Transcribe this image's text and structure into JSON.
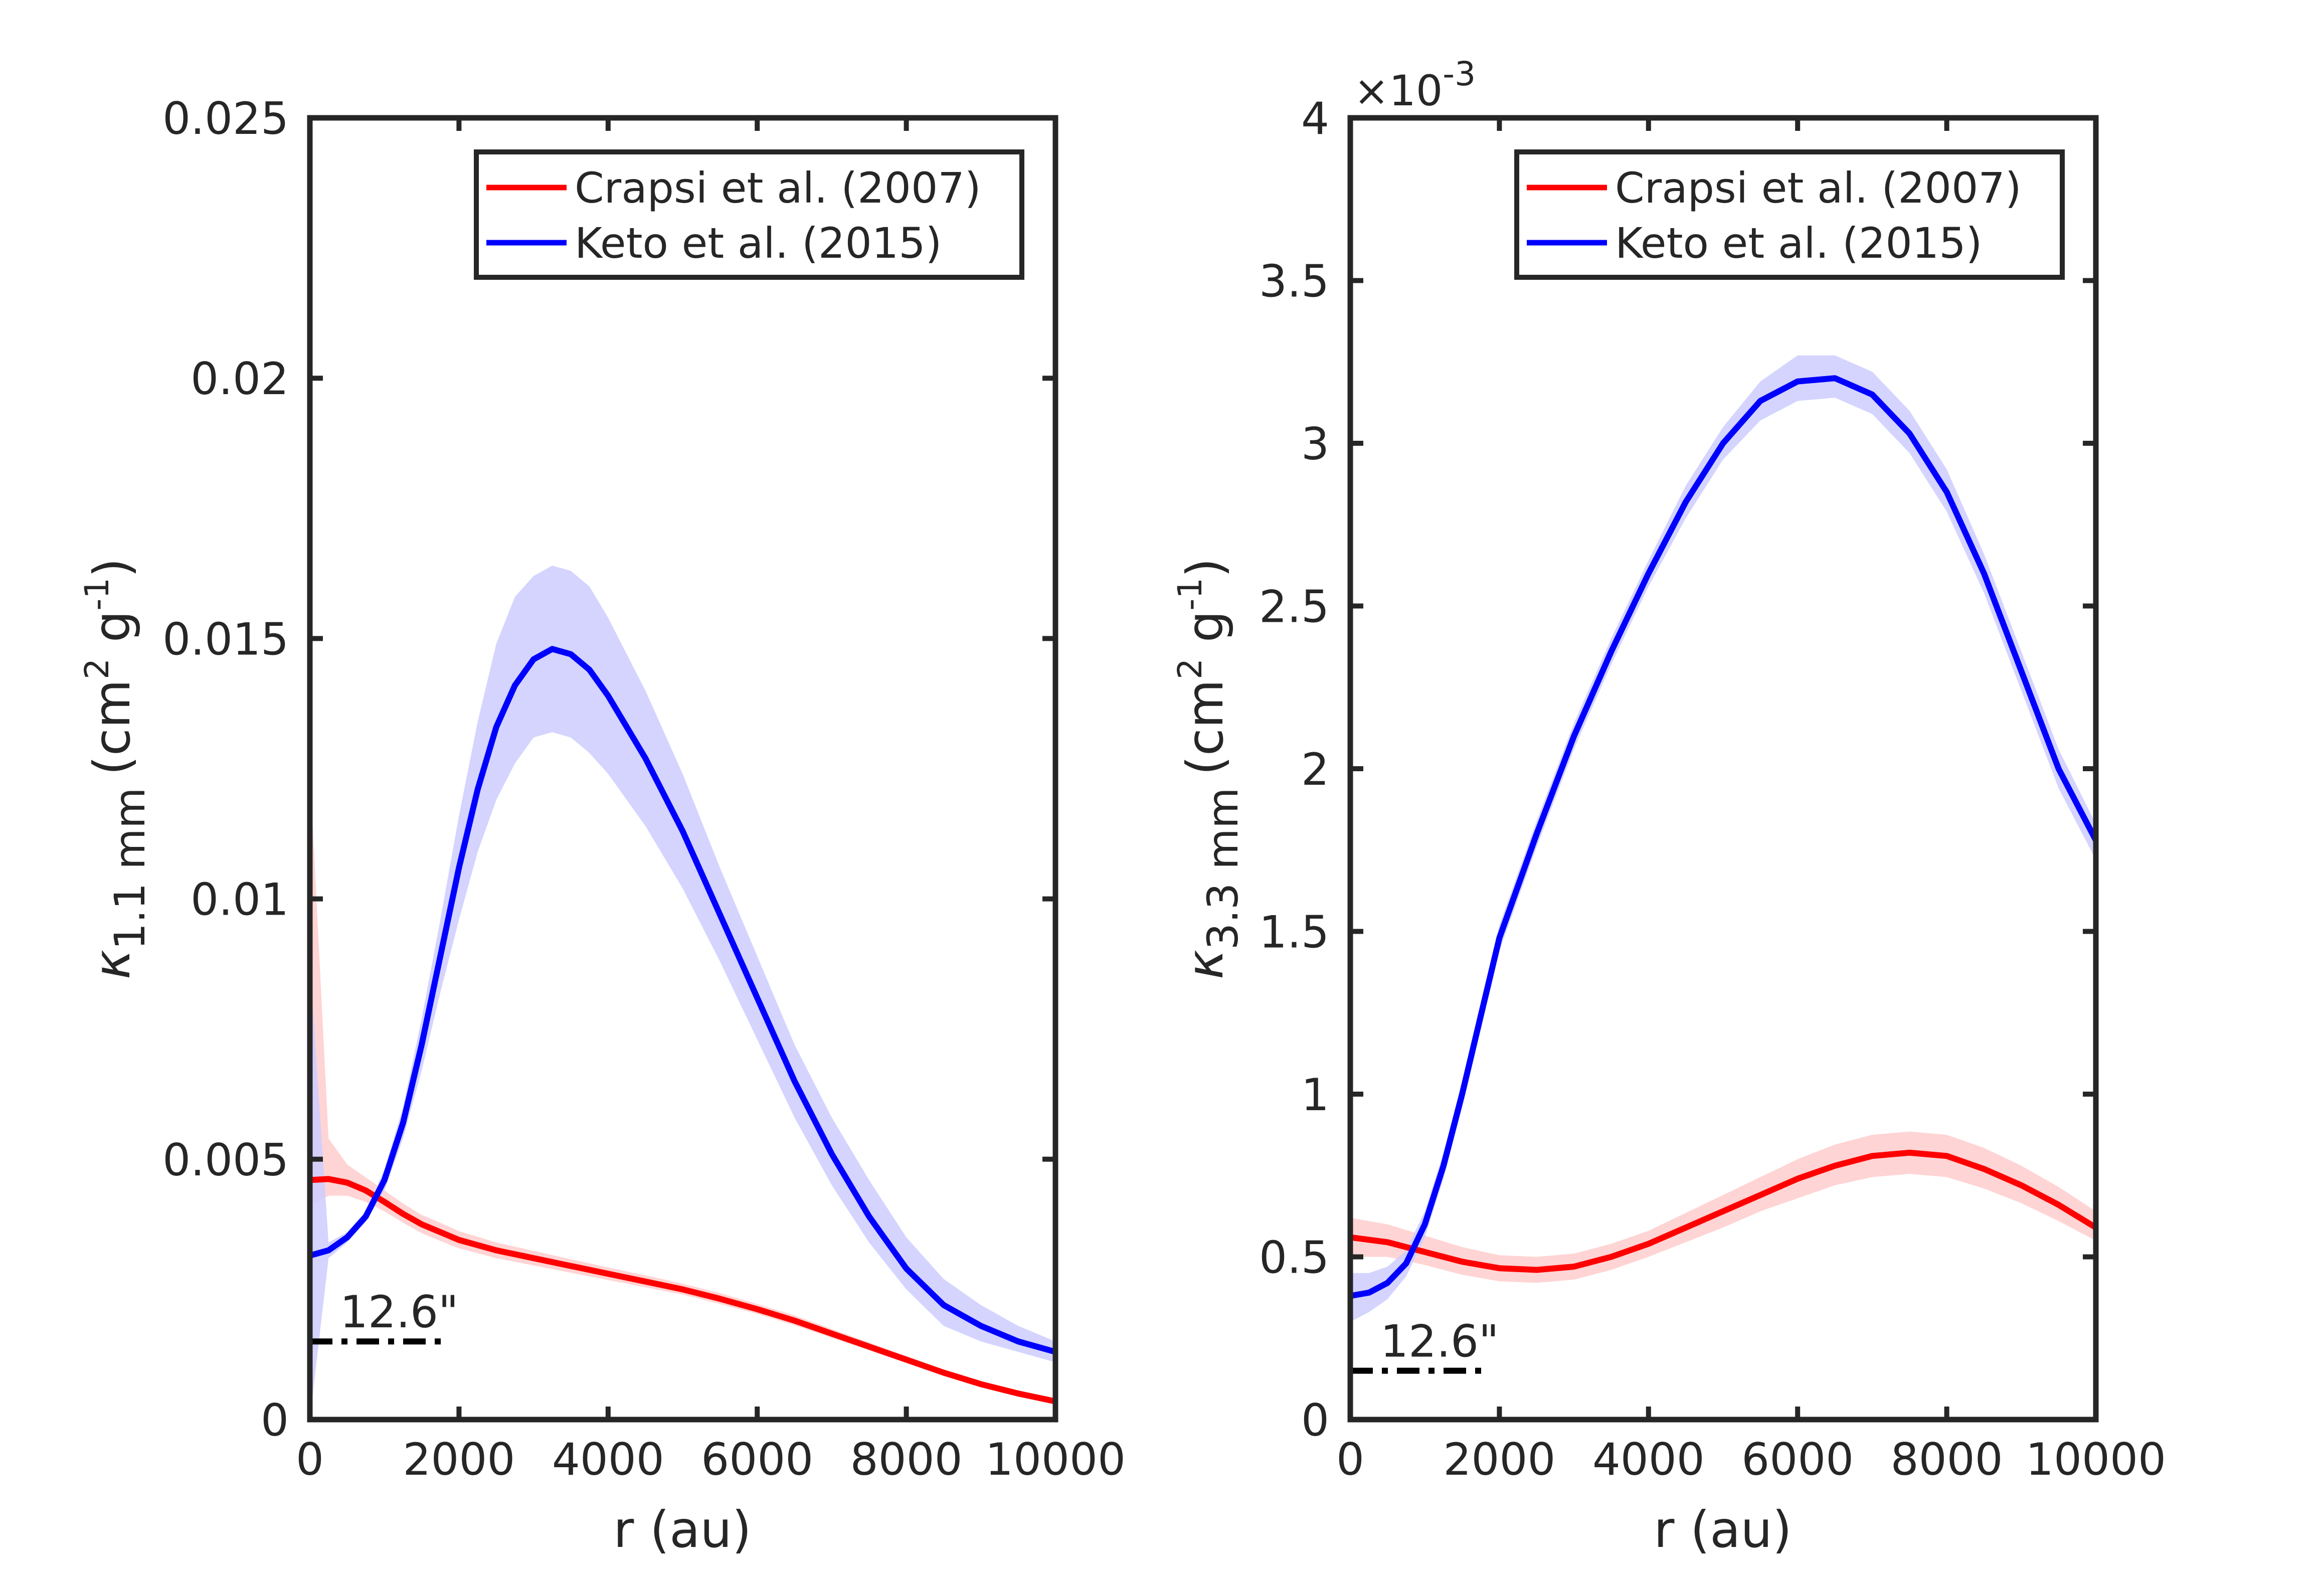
{
  "chart_data": [
    {
      "type": "line",
      "xlabel": "r (au)",
      "ylabel": {
        "symbol": "κ",
        "subscript": "1.1 mm",
        "unit_open": "(cm",
        "unit_pow1": "2",
        "unit_mid": " g",
        "unit_pow2": "-1",
        "unit_close": ")"
      },
      "xlim": [
        0,
        10000
      ],
      "ylim": [
        0,
        0.025
      ],
      "xticks": [
        0,
        2000,
        4000,
        6000,
        8000,
        10000
      ],
      "xtick_labels": [
        "0",
        "2000",
        "4000",
        "6000",
        "8000",
        "10000"
      ],
      "yticks": [
        0,
        0.005,
        0.01,
        0.015,
        0.02,
        0.025
      ],
      "ytick_labels": [
        "0",
        "0.005",
        "0.01",
        "0.015",
        "0.02",
        "0.025"
      ],
      "exponent_label": null,
      "legend": {
        "position": "top-right",
        "entries": [
          "Crapsi et al. (2007)",
          "Keto et al. (2015)"
        ]
      },
      "annotation": {
        "text": "12.6\"",
        "x_start": 0,
        "x_end": 1800,
        "y": 0.0015
      },
      "series": [
        {
          "name": "Crapsi et al. (2007)",
          "color": "#ff0000",
          "band_color": "#ffcccc",
          "x": [
            0,
            250,
            500,
            750,
            1000,
            1250,
            1500,
            1750,
            2000,
            2500,
            3000,
            3500,
            4000,
            4500,
            5000,
            5500,
            6000,
            6500,
            7000,
            7500,
            8000,
            8500,
            9000,
            9500,
            10000
          ],
          "y": [
            0.0046,
            0.00462,
            0.00455,
            0.0044,
            0.00418,
            0.00395,
            0.00375,
            0.0036,
            0.00345,
            0.00325,
            0.0031,
            0.00295,
            0.0028,
            0.00265,
            0.0025,
            0.00232,
            0.00212,
            0.0019,
            0.00165,
            0.0014,
            0.00115,
            0.0009,
            0.00068,
            0.0005,
            0.00035
          ],
          "lower": [
            0.0041,
            0.0043,
            0.0043,
            0.00418,
            0.004,
            0.00378,
            0.00358,
            0.00343,
            0.00329,
            0.0031,
            0.00296,
            0.00282,
            0.00268,
            0.00254,
            0.0024,
            0.00222,
            0.00203,
            0.00181,
            0.00157,
            0.00133,
            0.00109,
            0.00085,
            0.00064,
            0.00047,
            0.00032
          ],
          "upper": [
            0.0125,
            0.0054,
            0.0049,
            0.00465,
            0.0044,
            0.00415,
            0.00393,
            0.00378,
            0.00362,
            0.0034,
            0.00324,
            0.00308,
            0.00292,
            0.00277,
            0.00261,
            0.00243,
            0.00222,
            0.002,
            0.00174,
            0.00148,
            0.00122,
            0.00096,
            0.00073,
            0.00054,
            0.00038
          ]
        },
        {
          "name": "Keto et al. (2015)",
          "color": "#0000ff",
          "band_color": "#ccccff",
          "x": [
            0,
            250,
            500,
            750,
            1000,
            1250,
            1500,
            1750,
            2000,
            2250,
            2500,
            2750,
            3000,
            3250,
            3500,
            3750,
            4000,
            4500,
            5000,
            5500,
            6000,
            6500,
            7000,
            7500,
            8000,
            8500,
            9000,
            9500,
            10000
          ],
          "y": [
            0.00315,
            0.00325,
            0.0035,
            0.0039,
            0.0046,
            0.0057,
            0.0072,
            0.0089,
            0.0106,
            0.0121,
            0.0133,
            0.0141,
            0.0146,
            0.0148,
            0.0147,
            0.0144,
            0.0139,
            0.0127,
            0.0113,
            0.0097,
            0.0081,
            0.0065,
            0.0051,
            0.0039,
            0.0029,
            0.0022,
            0.0018,
            0.0015,
            0.0013
          ],
          "lower": [
            0.0,
            0.0031,
            0.0034,
            0.0038,
            0.0044,
            0.0054,
            0.0067,
            0.0082,
            0.0096,
            0.0109,
            0.0119,
            0.0126,
            0.0131,
            0.0132,
            0.0131,
            0.0128,
            0.0124,
            0.0114,
            0.0102,
            0.0088,
            0.0073,
            0.0058,
            0.0045,
            0.0034,
            0.0025,
            0.0018,
            0.0015,
            0.0013,
            0.0011
          ],
          "upper": [
            0.0088,
            0.0034,
            0.0036,
            0.004,
            0.0048,
            0.006,
            0.0077,
            0.0096,
            0.0116,
            0.0134,
            0.0149,
            0.0158,
            0.0162,
            0.0164,
            0.0163,
            0.016,
            0.0154,
            0.014,
            0.0124,
            0.0106,
            0.0089,
            0.0072,
            0.0058,
            0.0046,
            0.0035,
            0.0027,
            0.0022,
            0.0018,
            0.0015
          ]
        }
      ]
    },
    {
      "type": "line",
      "xlabel": "r (au)",
      "ylabel": {
        "symbol": "κ",
        "subscript": "3.3 mm",
        "unit_open": "(cm",
        "unit_pow1": "2",
        "unit_mid": " g",
        "unit_pow2": "-1",
        "unit_close": ")"
      },
      "xlim": [
        0,
        10000
      ],
      "ylim": [
        0,
        4
      ],
      "xticks": [
        0,
        2000,
        4000,
        6000,
        8000,
        10000
      ],
      "xtick_labels": [
        "0",
        "2000",
        "4000",
        "6000",
        "8000",
        "10000"
      ],
      "yticks": [
        0,
        0.5,
        1,
        1.5,
        2,
        2.5,
        3,
        3.5,
        4
      ],
      "ytick_labels": [
        "0",
        "0.5",
        "1",
        "1.5",
        "2",
        "2.5",
        "3",
        "3.5",
        "4"
      ],
      "exponent_label": {
        "base": "×10",
        "power": "-3"
      },
      "legend": {
        "position": "top-right",
        "entries": [
          "Crapsi et al. (2007)",
          "Keto et al. (2015)"
        ]
      },
      "annotation": {
        "text": "12.6\"",
        "x_start": 0,
        "x_end": 1800,
        "y": 0.15
      },
      "series": [
        {
          "name": "Crapsi et al. (2007)",
          "color": "#ff0000",
          "band_color": "#ffcccc",
          "x": [
            0,
            500,
            1000,
            1500,
            2000,
            2500,
            3000,
            3500,
            4000,
            4500,
            5000,
            5500,
            6000,
            6500,
            7000,
            7500,
            8000,
            8500,
            9000,
            9500,
            10000
          ],
          "y": [
            0.56,
            0.545,
            0.515,
            0.485,
            0.465,
            0.46,
            0.47,
            0.5,
            0.54,
            0.59,
            0.64,
            0.69,
            0.74,
            0.78,
            0.81,
            0.82,
            0.81,
            0.77,
            0.72,
            0.66,
            0.59
          ],
          "lower": [
            0.5,
            0.5,
            0.475,
            0.445,
            0.425,
            0.42,
            0.43,
            0.46,
            0.5,
            0.545,
            0.59,
            0.64,
            0.68,
            0.72,
            0.745,
            0.755,
            0.745,
            0.71,
            0.665,
            0.61,
            0.55
          ],
          "upper": [
            0.62,
            0.6,
            0.565,
            0.53,
            0.505,
            0.5,
            0.51,
            0.54,
            0.58,
            0.635,
            0.69,
            0.745,
            0.8,
            0.845,
            0.875,
            0.885,
            0.875,
            0.835,
            0.78,
            0.715,
            0.64
          ]
        },
        {
          "name": "Keto et al. (2015)",
          "color": "#0000ff",
          "band_color": "#ccccff",
          "x": [
            0,
            250,
            500,
            750,
            1000,
            1250,
            1500,
            1750,
            2000,
            2500,
            3000,
            3500,
            4000,
            4500,
            5000,
            5500,
            6000,
            6500,
            7000,
            7500,
            8000,
            8500,
            9000,
            9500,
            10000
          ],
          "y": [
            0.38,
            0.39,
            0.42,
            0.48,
            0.6,
            0.78,
            1.0,
            1.24,
            1.48,
            1.8,
            2.1,
            2.36,
            2.6,
            2.82,
            3.0,
            3.13,
            3.19,
            3.2,
            3.15,
            3.03,
            2.85,
            2.6,
            2.3,
            2.0,
            1.78
          ],
          "lower": [
            0.3,
            0.33,
            0.37,
            0.44,
            0.56,
            0.74,
            0.96,
            1.2,
            1.44,
            1.76,
            2.06,
            2.32,
            2.56,
            2.77,
            2.95,
            3.07,
            3.13,
            3.14,
            3.09,
            2.97,
            2.79,
            2.54,
            2.24,
            1.94,
            1.72
          ],
          "upper": [
            0.45,
            0.45,
            0.47,
            0.52,
            0.64,
            0.82,
            1.04,
            1.28,
            1.52,
            1.84,
            2.14,
            2.4,
            2.64,
            2.87,
            3.05,
            3.19,
            3.27,
            3.27,
            3.22,
            3.1,
            2.92,
            2.66,
            2.36,
            2.06,
            1.83
          ]
        }
      ]
    }
  ]
}
